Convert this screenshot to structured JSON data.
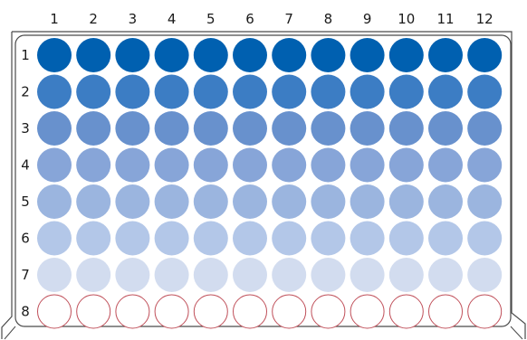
{
  "plate": {
    "columns": [
      "1",
      "2",
      "3",
      "4",
      "5",
      "6",
      "7",
      "8",
      "9",
      "10",
      "11",
      "12"
    ],
    "rows": [
      "1",
      "2",
      "3",
      "4",
      "5",
      "6",
      "7",
      "8"
    ]
  },
  "colors": {
    "frame": "#4a4a4a",
    "empty_well_stroke": "#c0505a",
    "row_fills": [
      "#0060b0",
      "#3c7dc4",
      "#6891cd",
      "#87a5d8",
      "#9bb5df",
      "#b3c7e8",
      "#d2dcef",
      "#ffffff"
    ]
  },
  "chart_data": {
    "type": "heatmap",
    "x_labels": [
      "1",
      "2",
      "3",
      "4",
      "5",
      "6",
      "7",
      "8",
      "9",
      "10",
      "11",
      "12"
    ],
    "y_labels": [
      "1",
      "2",
      "3",
      "4",
      "5",
      "6",
      "7",
      "8"
    ],
    "row_intensity": [
      1.0,
      0.8,
      0.65,
      0.52,
      0.43,
      0.3,
      0.16,
      0.0
    ]
  }
}
